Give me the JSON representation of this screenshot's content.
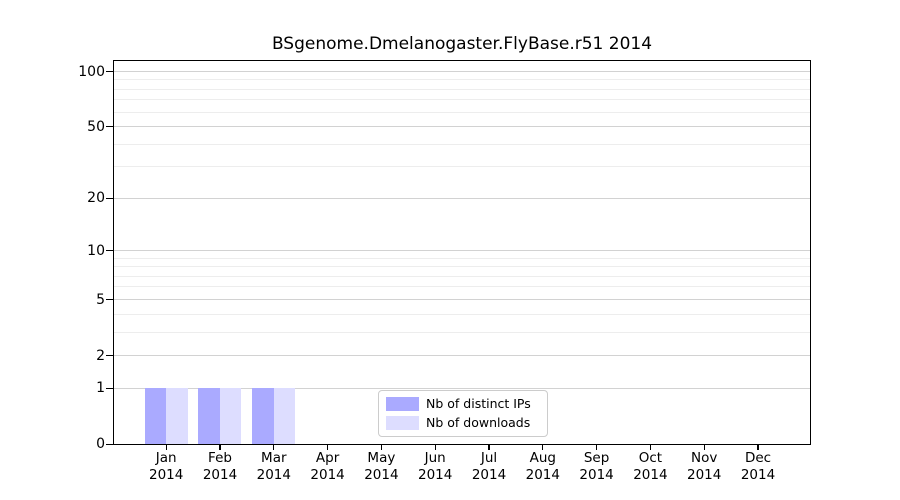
{
  "chart_data": {
    "type": "bar",
    "title": "BSgenome.Dmelanogaster.FlyBase.r51 2014",
    "categories": [
      "Jan",
      "Feb",
      "Mar",
      "Apr",
      "May",
      "Jun",
      "Jul",
      "Aug",
      "Sep",
      "Oct",
      "Nov",
      "Dec"
    ],
    "category_year": "2014",
    "series": [
      {
        "name": "Nb of distinct IPs",
        "color": "#aaaaff",
        "values": [
          1,
          1,
          1,
          0,
          0,
          0,
          0,
          0,
          0,
          0,
          0,
          0
        ]
      },
      {
        "name": "Nb of downloads",
        "color": "#ddddff",
        "values": [
          1,
          1,
          1,
          0,
          0,
          0,
          0,
          0,
          0,
          0,
          0,
          0
        ]
      }
    ],
    "xlabel": "",
    "ylabel": "",
    "yscale": "log1p",
    "ylim": [
      0,
      115
    ],
    "yticks": [
      0,
      1,
      2,
      5,
      10,
      20,
      50,
      100
    ],
    "minor_yticks": [
      3,
      4,
      6,
      7,
      8,
      9,
      30,
      40,
      60,
      70,
      80,
      90
    ],
    "grid": "horizontal",
    "legend_position": "inside-bottom-center"
  },
  "style": {
    "major_grid_color": "#d2d2d2",
    "minor_grid_color": "#ededed",
    "axis_color": "#000000",
    "text_color": "#000000",
    "legend_border_color": "#cccccc",
    "background": "#ffffff"
  }
}
